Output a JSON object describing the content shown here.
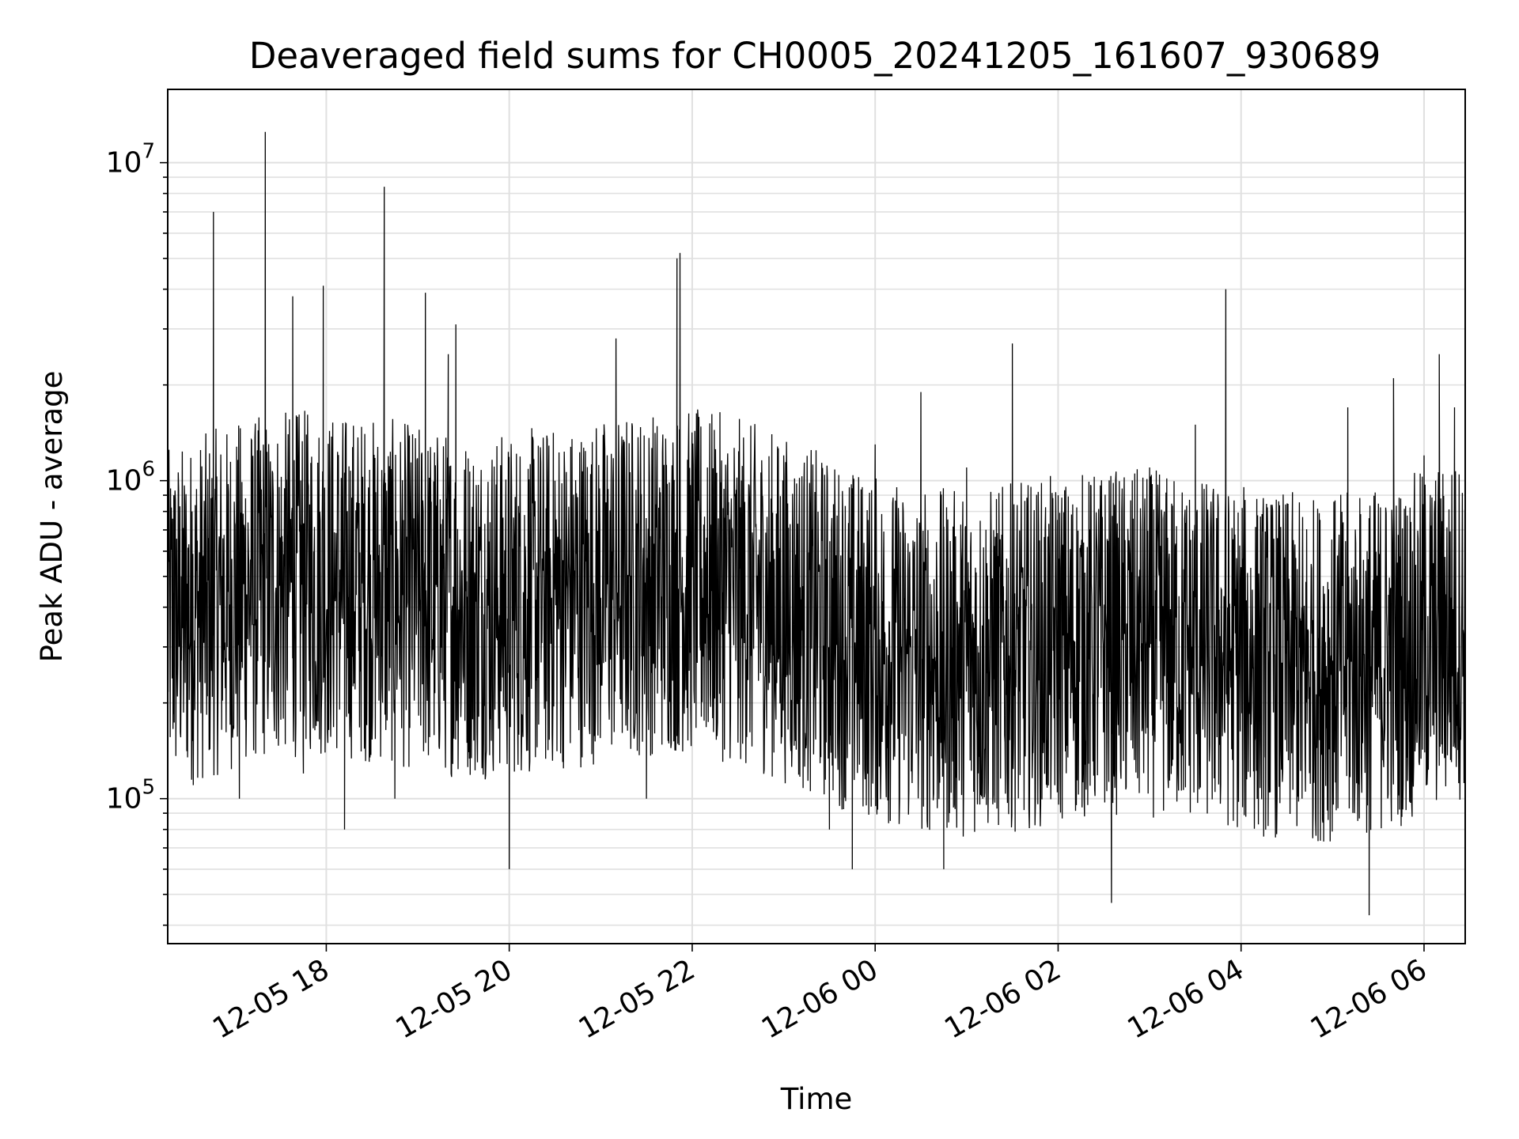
{
  "chart_data": {
    "type": "line",
    "title": "Deaveraged field sums for CH0005_20241205_161607_930689",
    "xlabel": "Time",
    "ylabel": "Peak ADU - average",
    "yscale": "log",
    "ylim": [
      35000,
      17000000
    ],
    "xlim": [
      "2024-12-05 16:16",
      "2024-12-06 06:27"
    ],
    "grid": true,
    "line_color": "#000000",
    "x_ticks": [
      {
        "value": "2024-12-05 18:00",
        "label": "12-05 18"
      },
      {
        "value": "2024-12-05 20:00",
        "label": "12-05 20"
      },
      {
        "value": "2024-12-05 22:00",
        "label": "12-05 22"
      },
      {
        "value": "2024-12-06 00:00",
        "label": "12-06 00"
      },
      {
        "value": "2024-12-06 02:00",
        "label": "12-06 02"
      },
      {
        "value": "2024-12-06 04:00",
        "label": "12-06 04"
      },
      {
        "value": "2024-12-06 06:00",
        "label": "12-06 06"
      }
    ],
    "y_ticks": [
      {
        "value": 100000,
        "base": "10",
        "exp": "5"
      },
      {
        "value": 1000000,
        "base": "10",
        "exp": "6"
      },
      {
        "value": 10000000,
        "base": "10",
        "exp": "7"
      }
    ],
    "series": [
      {
        "values": [
          [
            "2024-12-05 16:16",
            150000
          ],
          [
            "2024-12-05 16:20",
            900000
          ],
          [
            "2024-12-05 16:25",
            500000
          ],
          [
            "2024-12-05 16:32",
            800000
          ],
          [
            "2024-12-05 16:42",
            210000
          ],
          [
            "2024-12-05 16:46",
            7000000
          ],
          [
            "2024-12-05 16:55",
            300000
          ],
          [
            "2024-12-05 17:03",
            100000
          ],
          [
            "2024-12-05 17:12",
            600000
          ],
          [
            "2024-12-05 17:20",
            12500000
          ],
          [
            "2024-12-05 17:31",
            400000
          ],
          [
            "2024-12-05 17:38",
            3800000
          ],
          [
            "2024-12-05 17:45",
            120000
          ],
          [
            "2024-12-05 17:58",
            4100000
          ],
          [
            "2024-12-05 18:05",
            300000
          ],
          [
            "2024-12-05 18:12",
            80000
          ],
          [
            "2024-12-05 18:25",
            600000
          ],
          [
            "2024-12-05 18:38",
            8400000
          ],
          [
            "2024-12-05 18:45",
            100000
          ],
          [
            "2024-12-05 19:00",
            800000
          ],
          [
            "2024-12-05 19:05",
            3900000
          ],
          [
            "2024-12-05 19:20",
            2500000
          ],
          [
            "2024-12-05 19:25",
            3100000
          ],
          [
            "2024-12-05 19:40",
            400000
          ],
          [
            "2024-12-05 20:00",
            60000
          ],
          [
            "2024-12-05 20:30",
            1000000
          ],
          [
            "2024-12-05 21:00",
            300000
          ],
          [
            "2024-12-05 21:10",
            2800000
          ],
          [
            "2024-12-05 21:30",
            100000
          ],
          [
            "2024-12-05 21:50",
            5000000
          ],
          [
            "2024-12-05 21:52",
            5200000
          ],
          [
            "2024-12-05 22:10",
            1100000
          ],
          [
            "2024-12-05 22:30",
            150000
          ],
          [
            "2024-12-05 23:00",
            1200000
          ],
          [
            "2024-12-05 23:30",
            80000
          ],
          [
            "2024-12-05 23:45",
            60000
          ],
          [
            "2024-12-06 00:00",
            1300000
          ],
          [
            "2024-12-06 00:30",
            1900000
          ],
          [
            "2024-12-06 00:45",
            60000
          ],
          [
            "2024-12-06 01:00",
            1100000
          ],
          [
            "2024-12-06 01:30",
            2700000
          ],
          [
            "2024-12-06 02:00",
            900000
          ],
          [
            "2024-12-06 02:30",
            200000
          ],
          [
            "2024-12-06 02:35",
            47000
          ],
          [
            "2024-12-06 03:00",
            1100000
          ],
          [
            "2024-12-06 03:30",
            1500000
          ],
          [
            "2024-12-06 03:50",
            4000000
          ],
          [
            "2024-12-06 04:15",
            300000
          ],
          [
            "2024-12-06 04:40",
            100000
          ],
          [
            "2024-12-06 05:10",
            1700000
          ],
          [
            "2024-12-06 05:24",
            43000
          ],
          [
            "2024-12-06 05:40",
            2100000
          ],
          [
            "2024-12-06 06:00",
            1200000
          ],
          [
            "2024-12-06 06:10",
            2500000
          ],
          [
            "2024-12-06 06:20",
            1700000
          ],
          [
            "2024-12-06 06:27",
            140000
          ]
        ]
      }
    ]
  }
}
